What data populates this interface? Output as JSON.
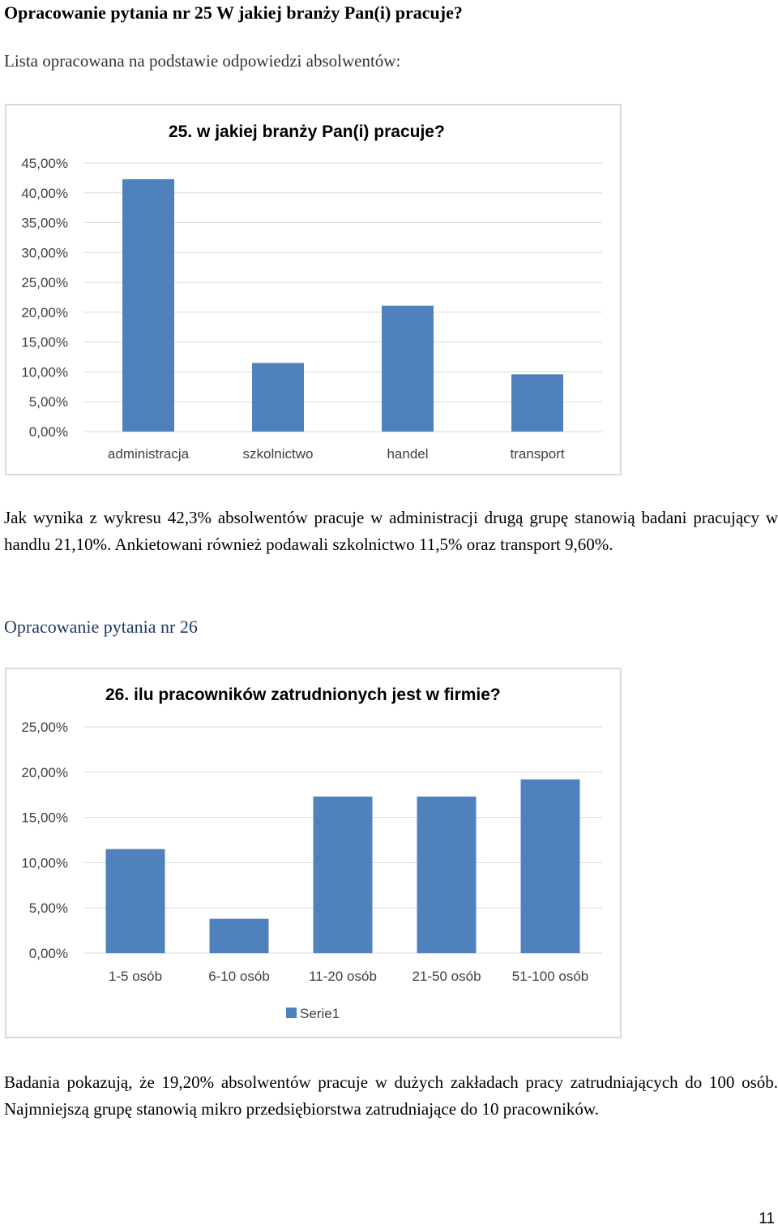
{
  "section25": {
    "heading": "Opracowanie pytania nr 25 W jakiej branży Pan(i) pracuje?",
    "intro": "Lista opracowana na podstawie odpowiedzi absolwentów:",
    "summary": "Jak wynika z wykresu 42,3% absolwentów pracuje w administracji drugą grupę stanowią badani pracujący w handlu 21,10%. Ankietowani również podawali szkolnictwo 11,5% oraz transport 9,60%."
  },
  "section26": {
    "heading": "Opracowanie pytania nr 26",
    "summary": "Badania pokazują, że 19,20% absolwentów pracuje w dużych zakładach pracy zatrudniających do 100 osób. Najmniejszą grupę stanowią mikro przedsiębiorstwa zatrudniające do 10 pracowników."
  },
  "page_number": "11",
  "colors": {
    "bar": "#4f81bd",
    "grid": "#d9d9d9",
    "frame": "#d9d9d9"
  },
  "chart_data": [
    {
      "type": "bar",
      "title": "25. w jakiej branży Pan(i) pracuje?",
      "categories": [
        "administracja",
        "szkolnictwo",
        "handel",
        "transport"
      ],
      "values": [
        42.3,
        11.5,
        21.1,
        9.6
      ],
      "ylim": [
        0,
        45
      ],
      "yticks": [
        "0,00%",
        "5,00%",
        "10,00%",
        "15,00%",
        "20,00%",
        "25,00%",
        "30,00%",
        "35,00%",
        "40,00%",
        "45,00%"
      ],
      "grid": true,
      "legend": null
    },
    {
      "type": "bar",
      "title": "26. ilu pracowników zatrudnionych jest w firmie?",
      "categories": [
        "1-5 osób",
        "6-10 osób",
        "11-20 osób",
        "21-50 osób",
        "51-100 osób"
      ],
      "series": [
        {
          "name": "Serie1",
          "values": [
            11.5,
            3.8,
            17.3,
            17.3,
            19.2
          ]
        }
      ],
      "ylim": [
        0,
        25
      ],
      "yticks": [
        "0,00%",
        "5,00%",
        "10,00%",
        "15,00%",
        "20,00%",
        "25,00%"
      ],
      "grid": true,
      "legend": "bottom"
    }
  ]
}
